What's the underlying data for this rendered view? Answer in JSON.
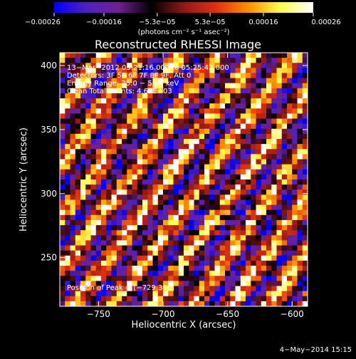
{
  "chart_data": {
    "type": "heatmap",
    "title": "Reconstructed RHESSI Image",
    "xlabel": "Heliocentric X (arcsec)",
    "ylabel": "Heliocentric Y (arcsec)",
    "xlim": [
      -780,
      -588
    ],
    "ylim": [
      212,
      410
    ],
    "x_ticks": [
      -750,
      -700,
      -650,
      -600
    ],
    "x_tick_labels": [
      "−750",
      "−700",
      "−650",
      "−600"
    ],
    "y_ticks": [
      250,
      300,
      350,
      400
    ],
    "y_tick_labels": [
      "250",
      "300",
      "350",
      "400"
    ],
    "grid": false,
    "colorbar": {
      "range": [
        -0.00026,
        0.00026
      ],
      "tick_values": [
        -0.00026,
        -0.00016,
        -5.3e-05,
        5.3e-05,
        0.00016,
        0.00026
      ],
      "tick_labels": [
        "−0.00026",
        "−0.00016",
        "−5.3e−05",
        "5.3e−05",
        "0.00016",
        "0.00026"
      ],
      "unit_label": "(photons cm⁻² s⁻¹ asec⁻²)",
      "colors": [
        "#0000ff",
        "#5020c0",
        "#702090",
        "#000000",
        "#901818",
        "#e03010",
        "#ff9000",
        "#ffff50",
        "#ffffff"
      ]
    },
    "annotations": {
      "time_range": "13−Mar−2012 05:21:16.000 to 05:25:42.000",
      "detectors": "Detectors: 3F 5F 6F 7F 8F 9F, Att 0",
      "energy": "Energy Range: 25.0 − 50.0 keV",
      "clean": "Clean     Total counts: 4.60E+03",
      "peak": "Position of Peak = [−729,399]"
    },
    "pixel_grid": {
      "nx": 48,
      "ny": 50,
      "pattern": "diagonal stripes of alternating positive and negative flux rising to the upper right, noise-like",
      "stripe_slope": 1.4,
      "stripe_period": 10.5
    }
  },
  "footer": {
    "timestamp": "4−May−2014 15:15"
  }
}
